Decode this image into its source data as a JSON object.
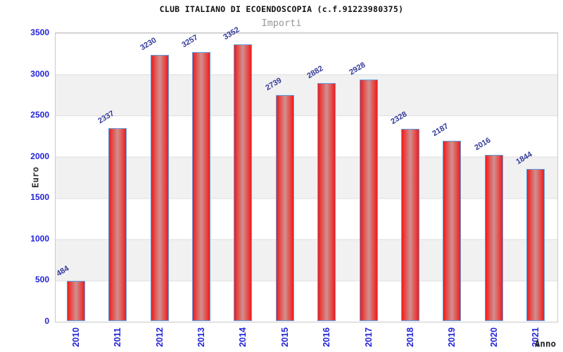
{
  "header": {
    "title": "CLUB ITALIANO DI ECOENDOSCOPIA (c.f.91223980375)",
    "subtitle": "Importi"
  },
  "chart_data": {
    "type": "bar",
    "title": "CLUB ITALIANO DI ECOENDOSCOPIA (c.f.91223980375)",
    "subtitle": "Importi",
    "categories": [
      "2010",
      "2011",
      "2012",
      "2013",
      "2014",
      "2015",
      "2016",
      "2017",
      "2018",
      "2019",
      "2020",
      "2021"
    ],
    "values": [
      484,
      2337,
      3230,
      3257,
      3352,
      2739,
      2882,
      2928,
      2328,
      2187,
      2016,
      1844
    ],
    "xlabel": "Anno",
    "ylabel": "Euro",
    "ylim": [
      0,
      3500
    ],
    "yticks": [
      0,
      500,
      1000,
      1500,
      2000,
      2500,
      3000,
      3500
    ],
    "grid": "horizontal-bands-every-500",
    "legend": "none",
    "value_label_rotation_deg": -31,
    "colors": {
      "bar_fill_edge": "#ee1c1c",
      "bar_fill_center": "#cf9191",
      "bar_border": "#5e9fe0",
      "tick_label": "#2323d7",
      "value_label": "#333a99",
      "band_gray": "#f1f1f1",
      "band_white": "#ffffff",
      "plot_border": "#c9c9c9",
      "title": "#111111",
      "subtitle": "#989898",
      "axis_title": "#333333"
    }
  }
}
